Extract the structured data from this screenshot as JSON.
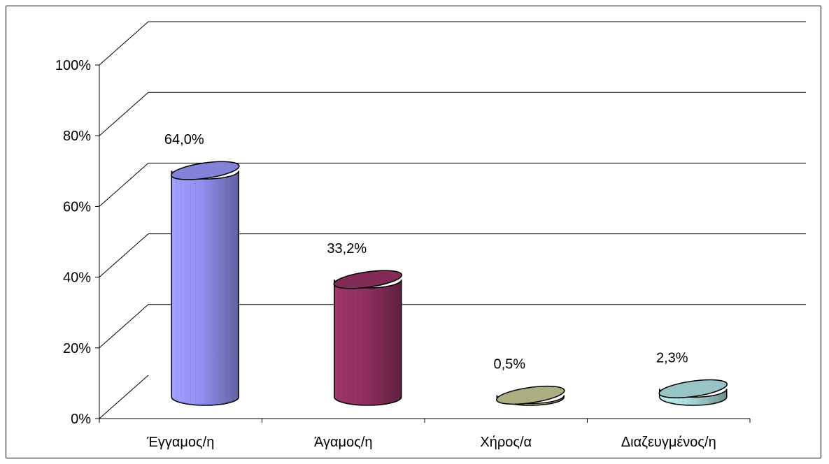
{
  "chart_data": {
    "type": "bar",
    "style": "3d-cylinder",
    "categories": [
      "Έγγαμος/η",
      "Άγαμος/η",
      "Χήρος/α",
      "Διαζευγμένος/η"
    ],
    "values": [
      64.0,
      33.2,
      0.5,
      2.3
    ],
    "value_labels": [
      "64,0%",
      "33,2%",
      "0,5%",
      "2,3%"
    ],
    "colors": [
      "#9999ff",
      "#993366",
      "#cccc99",
      "#b3e6e6"
    ],
    "yticks": [
      "0%",
      "20%",
      "40%",
      "60%",
      "80%",
      "100%"
    ],
    "ylim": [
      0,
      100
    ],
    "title": "",
    "xlabel": "",
    "ylabel": "",
    "grid": true,
    "legend": "none"
  }
}
